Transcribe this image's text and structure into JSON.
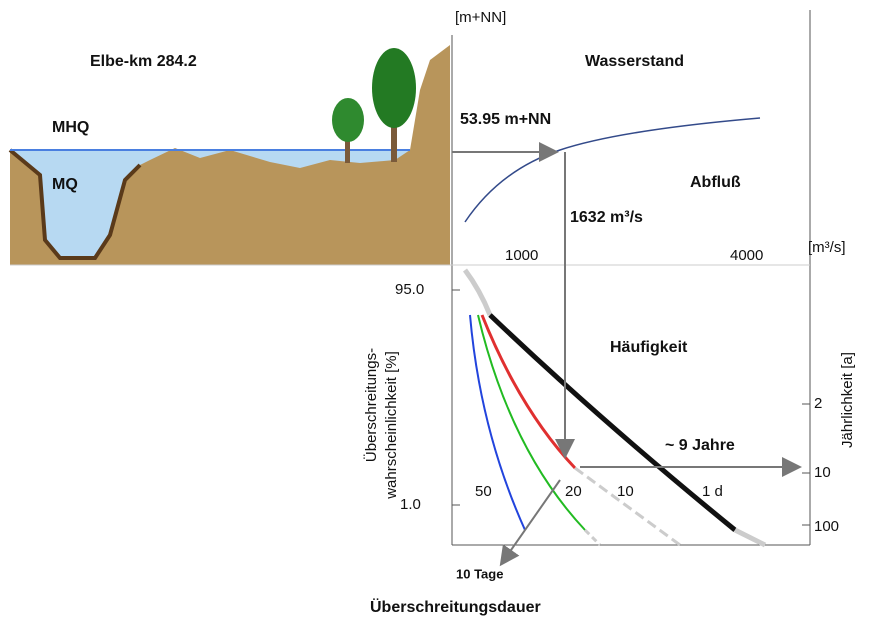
{
  "header": {
    "unit_top": "[m+NN]",
    "location": "Elbe-km 284.2",
    "water_level": "Wasserstand"
  },
  "cross_section": {
    "mhq": "MHQ",
    "mq": "MQ"
  },
  "rating": {
    "level": "53.95 m+NN",
    "discharge_label": "Abfluß",
    "discharge": "1632 m³/s",
    "x_ticks": [
      "1000",
      "4000"
    ],
    "x_unit": "[m³/s]"
  },
  "frequency": {
    "title": "Häufigkeit",
    "y_label_1": "Überschreitungs-",
    "y_label_2": "wahrscheinlichkeit [%]",
    "y_ticks": [
      "95.0",
      "1.0"
    ],
    "right_label": "Jährlichkeit [a]",
    "right_ticks": [
      "2",
      "10",
      "100"
    ],
    "return_period": "~ 9 Jahre",
    "curve_labels": [
      "50",
      "20",
      "10",
      "1 d"
    ],
    "duration": "10 Tage",
    "x_label": "Überschreitungsdauer"
  }
}
